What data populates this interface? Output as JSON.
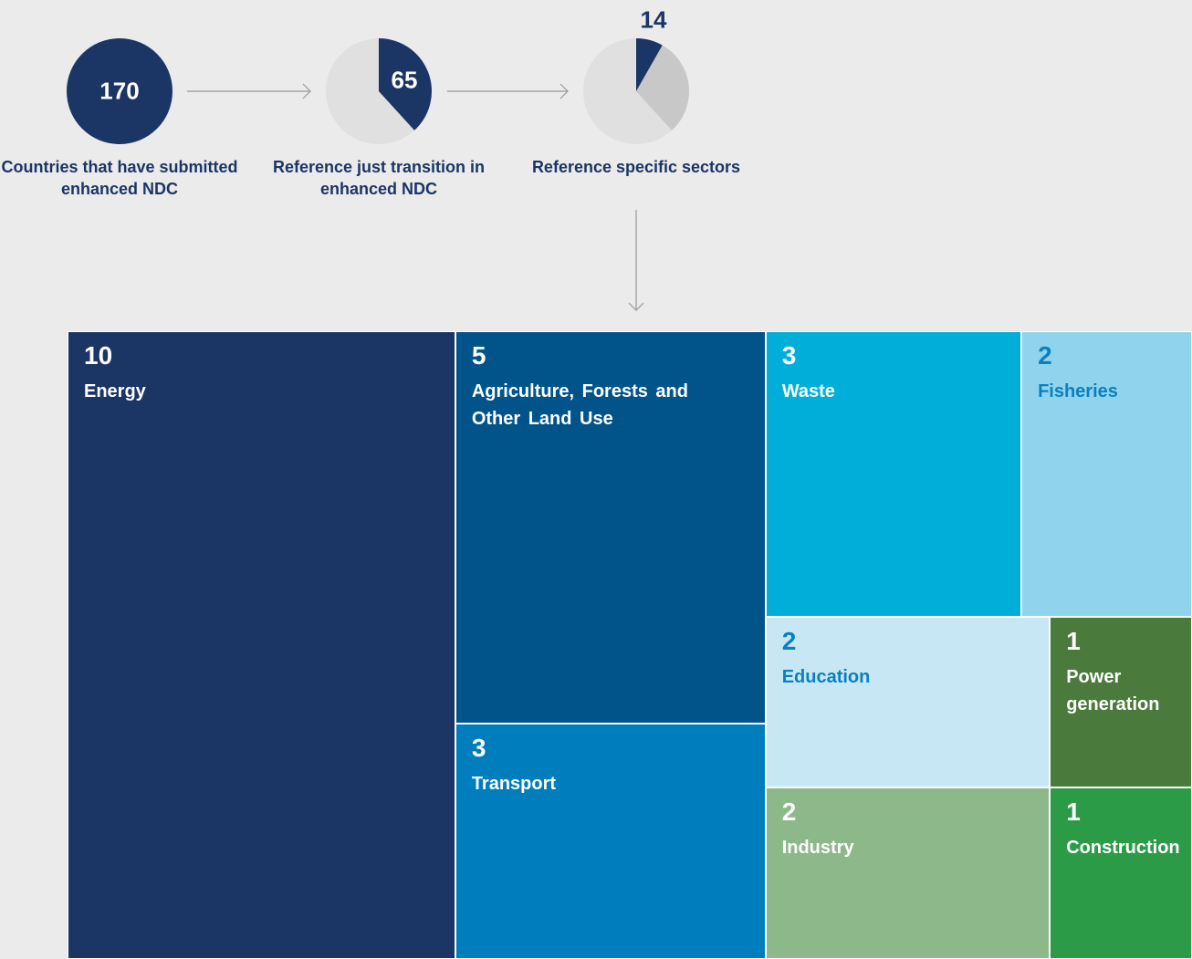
{
  "chart_data": [
    {
      "type": "flow",
      "steps": [
        {
          "value": 170,
          "label": "Countries that have submitted enhanced NDC"
        },
        {
          "value": 65,
          "label": "Reference just transition in enhanced NDC"
        },
        {
          "value": 14,
          "label": "Reference specific sectors"
        }
      ],
      "colors": [
        "#1b3565",
        "#c8c8c8",
        "#e0e0e0"
      ]
    },
    {
      "type": "treemap",
      "categories": [
        "Energy",
        "Agriculture, Forests and Other Land Use",
        "Transport",
        "Waste",
        "Fisheries",
        "Education",
        "Power generation",
        "Industry",
        "Construction"
      ],
      "values": [
        10,
        5,
        3,
        3,
        2,
        2,
        1,
        2,
        1
      ],
      "colors": [
        "#1b3565",
        "#00548a",
        "#007dbc",
        "#00afd9",
        "#8fd4ec",
        "#c7e7f4",
        "#4a7a3c",
        "#8db88a",
        "#2c9b48"
      ]
    }
  ]
}
